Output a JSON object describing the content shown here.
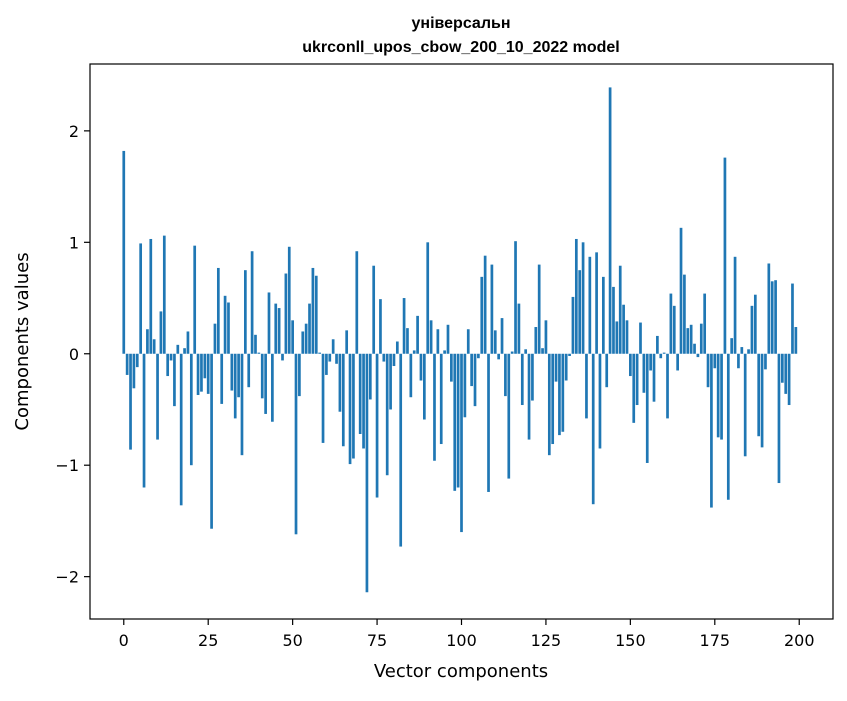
{
  "chart_data": {
    "type": "bar",
    "title": [
      "універсальн",
      "ukrconll_upos_cbow_200_10_2022 model"
    ],
    "xlabel": "Vector components",
    "ylabel": "Components values",
    "xlim": [
      -10,
      210
    ],
    "ylim": [
      -2.38,
      2.6
    ],
    "xticks": [
      0,
      25,
      50,
      75,
      100,
      125,
      150,
      175,
      200
    ],
    "xtick_labels": [
      "0",
      "25",
      "50",
      "75",
      "100",
      "125",
      "150",
      "175",
      "200"
    ],
    "yticks": [
      -2,
      -1,
      0,
      1,
      2
    ],
    "ytick_labels": [
      "−2",
      "−1",
      "0",
      "1",
      "2"
    ],
    "bar_color": "#1f77b4",
    "grid": false,
    "x": [
      0,
      1,
      2,
      3,
      4,
      5,
      6,
      7,
      8,
      9,
      10,
      11,
      12,
      13,
      14,
      15,
      16,
      17,
      18,
      19,
      20,
      21,
      22,
      23,
      24,
      25,
      26,
      27,
      28,
      29,
      30,
      31,
      32,
      33,
      34,
      35,
      36,
      37,
      38,
      39,
      40,
      41,
      42,
      43,
      44,
      45,
      46,
      47,
      48,
      49,
      50,
      51,
      52,
      53,
      54,
      55,
      56,
      57,
      58,
      59,
      60,
      61,
      62,
      63,
      64,
      65,
      66,
      67,
      68,
      69,
      70,
      71,
      72,
      73,
      74,
      75,
      76,
      77,
      78,
      79,
      80,
      81,
      82,
      83,
      84,
      85,
      86,
      87,
      88,
      89,
      90,
      91,
      92,
      93,
      94,
      95,
      96,
      97,
      98,
      99,
      100,
      101,
      102,
      103,
      104,
      105,
      106,
      107,
      108,
      109,
      110,
      111,
      112,
      113,
      114,
      115,
      116,
      117,
      118,
      119,
      120,
      121,
      122,
      123,
      124,
      125,
      126,
      127,
      128,
      129,
      130,
      131,
      132,
      133,
      134,
      135,
      136,
      137,
      138,
      139,
      140,
      141,
      142,
      143,
      144,
      145,
      146,
      147,
      148,
      149,
      150,
      151,
      152,
      153,
      154,
      155,
      156,
      157,
      158,
      159,
      160,
      161,
      162,
      163,
      164,
      165,
      166,
      167,
      168,
      169,
      170,
      171,
      172,
      173,
      174,
      175,
      176,
      177,
      178,
      179,
      180,
      181,
      182,
      183,
      184,
      185,
      186,
      187,
      188,
      189,
      190,
      191,
      192,
      193,
      194,
      195,
      196,
      197,
      198,
      199
    ],
    "values": [
      1.82,
      -0.19,
      -0.86,
      -0.31,
      -0.12,
      0.99,
      -1.2,
      0.22,
      1.03,
      0.13,
      -0.77,
      0.38,
      1.06,
      -0.2,
      -0.06,
      -0.47,
      0.08,
      -1.36,
      0.05,
      0.2,
      -1.0,
      0.97,
      -0.37,
      -0.34,
      -0.22,
      -0.36,
      -1.57,
      0.27,
      0.77,
      -0.45,
      0.52,
      0.46,
      -0.33,
      -0.58,
      -0.39,
      -0.91,
      0.75,
      -0.3,
      0.92,
      0.17,
      0.01,
      -0.4,
      -0.54,
      0.55,
      -0.61,
      0.45,
      0.41,
      -0.06,
      0.72,
      0.96,
      0.3,
      -1.62,
      -0.38,
      0.2,
      0.27,
      0.45,
      0.77,
      0.7,
      0.01,
      -0.8,
      -0.19,
      -0.07,
      0.13,
      -0.09,
      -0.52,
      -0.83,
      0.21,
      -0.99,
      -0.94,
      0.92,
      -0.72,
      -0.85,
      -2.14,
      -0.41,
      0.79,
      -1.29,
      0.49,
      -0.07,
      -1.09,
      -0.5,
      -0.11,
      0.11,
      -1.73,
      0.5,
      0.23,
      -0.39,
      0.03,
      0.34,
      -0.24,
      -0.59,
      1.0,
      0.3,
      -0.96,
      0.22,
      -0.81,
      0.03,
      0.26,
      -0.25,
      -1.23,
      -1.2,
      -1.6,
      -0.57,
      0.22,
      -0.29,
      -0.47,
      -0.04,
      0.69,
      0.88,
      -1.24,
      0.8,
      0.21,
      -0.05,
      0.32,
      -0.38,
      -1.12,
      0.02,
      1.01,
      0.45,
      -0.46,
      0.04,
      -0.77,
      -0.42,
      0.24,
      0.8,
      0.05,
      0.3,
      -0.91,
      -0.81,
      -0.25,
      -0.73,
      -0.7,
      -0.24,
      -0.02,
      0.51,
      1.03,
      0.75,
      1.0,
      -0.58,
      0.87,
      -1.35,
      0.91,
      -0.85,
      0.69,
      -0.3,
      2.39,
      0.6,
      0.29,
      0.79,
      0.44,
      0.3,
      -0.2,
      -0.62,
      -0.46,
      0.28,
      -0.35,
      -0.98,
      -0.15,
      -0.43,
      0.16,
      -0.04,
      0.01,
      -0.58,
      0.54,
      0.43,
      -0.15,
      1.13,
      0.71,
      0.23,
      0.26,
      0.09,
      -0.03,
      0.27,
      0.54,
      -0.3,
      -1.38,
      -0.13,
      -0.75,
      -0.77,
      1.76,
      -1.31,
      0.14,
      0.87,
      -0.13,
      0.06,
      -0.92,
      0.04,
      0.43,
      0.53,
      -0.74,
      -0.84,
      -0.14,
      0.81,
      0.65,
      0.66,
      -1.16,
      -0.26,
      -0.36,
      -0.46,
      0.63,
      0.24
    ]
  }
}
